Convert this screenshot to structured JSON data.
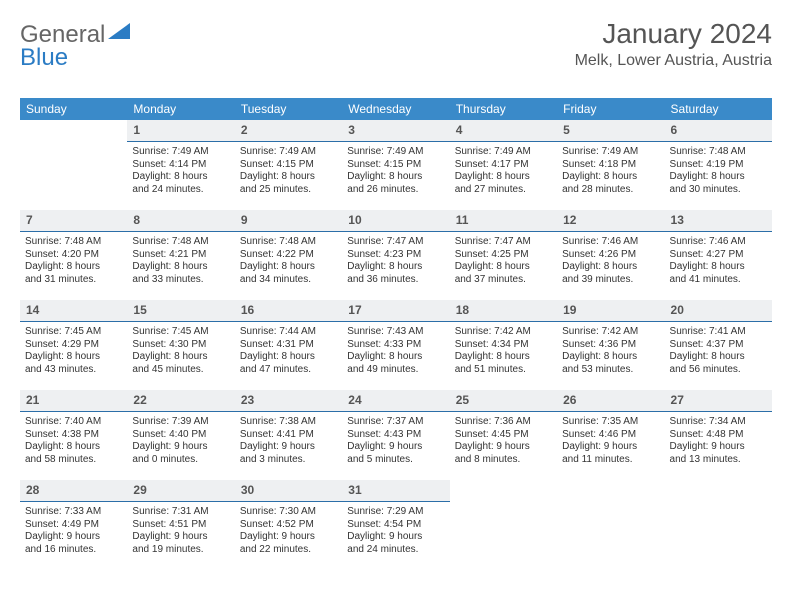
{
  "logo": {
    "text1": "General",
    "text2": "Blue"
  },
  "title": "January 2024",
  "location": "Melk, Lower Austria, Austria",
  "colors": {
    "header_bg": "#3a8ac9",
    "day_header_bg": "#eef0f2",
    "day_header_border": "#2b6ea8",
    "text": "#333333",
    "logo_blue": "#2b7cc4"
  },
  "dow": [
    "Sunday",
    "Monday",
    "Tuesday",
    "Wednesday",
    "Thursday",
    "Friday",
    "Saturday"
  ],
  "weeks": [
    [
      {
        "n": "",
        "lines": []
      },
      {
        "n": "1",
        "lines": [
          "Sunrise: 7:49 AM",
          "Sunset: 4:14 PM",
          "Daylight: 8 hours",
          "and 24 minutes."
        ]
      },
      {
        "n": "2",
        "lines": [
          "Sunrise: 7:49 AM",
          "Sunset: 4:15 PM",
          "Daylight: 8 hours",
          "and 25 minutes."
        ]
      },
      {
        "n": "3",
        "lines": [
          "Sunrise: 7:49 AM",
          "Sunset: 4:15 PM",
          "Daylight: 8 hours",
          "and 26 minutes."
        ]
      },
      {
        "n": "4",
        "lines": [
          "Sunrise: 7:49 AM",
          "Sunset: 4:17 PM",
          "Daylight: 8 hours",
          "and 27 minutes."
        ]
      },
      {
        "n": "5",
        "lines": [
          "Sunrise: 7:49 AM",
          "Sunset: 4:18 PM",
          "Daylight: 8 hours",
          "and 28 minutes."
        ]
      },
      {
        "n": "6",
        "lines": [
          "Sunrise: 7:48 AM",
          "Sunset: 4:19 PM",
          "Daylight: 8 hours",
          "and 30 minutes."
        ]
      }
    ],
    [
      {
        "n": "7",
        "lines": [
          "Sunrise: 7:48 AM",
          "Sunset: 4:20 PM",
          "Daylight: 8 hours",
          "and 31 minutes."
        ]
      },
      {
        "n": "8",
        "lines": [
          "Sunrise: 7:48 AM",
          "Sunset: 4:21 PM",
          "Daylight: 8 hours",
          "and 33 minutes."
        ]
      },
      {
        "n": "9",
        "lines": [
          "Sunrise: 7:48 AM",
          "Sunset: 4:22 PM",
          "Daylight: 8 hours",
          "and 34 minutes."
        ]
      },
      {
        "n": "10",
        "lines": [
          "Sunrise: 7:47 AM",
          "Sunset: 4:23 PM",
          "Daylight: 8 hours",
          "and 36 minutes."
        ]
      },
      {
        "n": "11",
        "lines": [
          "Sunrise: 7:47 AM",
          "Sunset: 4:25 PM",
          "Daylight: 8 hours",
          "and 37 minutes."
        ]
      },
      {
        "n": "12",
        "lines": [
          "Sunrise: 7:46 AM",
          "Sunset: 4:26 PM",
          "Daylight: 8 hours",
          "and 39 minutes."
        ]
      },
      {
        "n": "13",
        "lines": [
          "Sunrise: 7:46 AM",
          "Sunset: 4:27 PM",
          "Daylight: 8 hours",
          "and 41 minutes."
        ]
      }
    ],
    [
      {
        "n": "14",
        "lines": [
          "Sunrise: 7:45 AM",
          "Sunset: 4:29 PM",
          "Daylight: 8 hours",
          "and 43 minutes."
        ]
      },
      {
        "n": "15",
        "lines": [
          "Sunrise: 7:45 AM",
          "Sunset: 4:30 PM",
          "Daylight: 8 hours",
          "and 45 minutes."
        ]
      },
      {
        "n": "16",
        "lines": [
          "Sunrise: 7:44 AM",
          "Sunset: 4:31 PM",
          "Daylight: 8 hours",
          "and 47 minutes."
        ]
      },
      {
        "n": "17",
        "lines": [
          "Sunrise: 7:43 AM",
          "Sunset: 4:33 PM",
          "Daylight: 8 hours",
          "and 49 minutes."
        ]
      },
      {
        "n": "18",
        "lines": [
          "Sunrise: 7:42 AM",
          "Sunset: 4:34 PM",
          "Daylight: 8 hours",
          "and 51 minutes."
        ]
      },
      {
        "n": "19",
        "lines": [
          "Sunrise: 7:42 AM",
          "Sunset: 4:36 PM",
          "Daylight: 8 hours",
          "and 53 minutes."
        ]
      },
      {
        "n": "20",
        "lines": [
          "Sunrise: 7:41 AM",
          "Sunset: 4:37 PM",
          "Daylight: 8 hours",
          "and 56 minutes."
        ]
      }
    ],
    [
      {
        "n": "21",
        "lines": [
          "Sunrise: 7:40 AM",
          "Sunset: 4:38 PM",
          "Daylight: 8 hours",
          "and 58 minutes."
        ]
      },
      {
        "n": "22",
        "lines": [
          "Sunrise: 7:39 AM",
          "Sunset: 4:40 PM",
          "Daylight: 9 hours",
          "and 0 minutes."
        ]
      },
      {
        "n": "23",
        "lines": [
          "Sunrise: 7:38 AM",
          "Sunset: 4:41 PM",
          "Daylight: 9 hours",
          "and 3 minutes."
        ]
      },
      {
        "n": "24",
        "lines": [
          "Sunrise: 7:37 AM",
          "Sunset: 4:43 PM",
          "Daylight: 9 hours",
          "and 5 minutes."
        ]
      },
      {
        "n": "25",
        "lines": [
          "Sunrise: 7:36 AM",
          "Sunset: 4:45 PM",
          "Daylight: 9 hours",
          "and 8 minutes."
        ]
      },
      {
        "n": "26",
        "lines": [
          "Sunrise: 7:35 AM",
          "Sunset: 4:46 PM",
          "Daylight: 9 hours",
          "and 11 minutes."
        ]
      },
      {
        "n": "27",
        "lines": [
          "Sunrise: 7:34 AM",
          "Sunset: 4:48 PM",
          "Daylight: 9 hours",
          "and 13 minutes."
        ]
      }
    ],
    [
      {
        "n": "28",
        "lines": [
          "Sunrise: 7:33 AM",
          "Sunset: 4:49 PM",
          "Daylight: 9 hours",
          "and 16 minutes."
        ]
      },
      {
        "n": "29",
        "lines": [
          "Sunrise: 7:31 AM",
          "Sunset: 4:51 PM",
          "Daylight: 9 hours",
          "and 19 minutes."
        ]
      },
      {
        "n": "30",
        "lines": [
          "Sunrise: 7:30 AM",
          "Sunset: 4:52 PM",
          "Daylight: 9 hours",
          "and 22 minutes."
        ]
      },
      {
        "n": "31",
        "lines": [
          "Sunrise: 7:29 AM",
          "Sunset: 4:54 PM",
          "Daylight: 9 hours",
          "and 24 minutes."
        ]
      },
      {
        "n": "",
        "lines": []
      },
      {
        "n": "",
        "lines": []
      },
      {
        "n": "",
        "lines": []
      }
    ]
  ]
}
